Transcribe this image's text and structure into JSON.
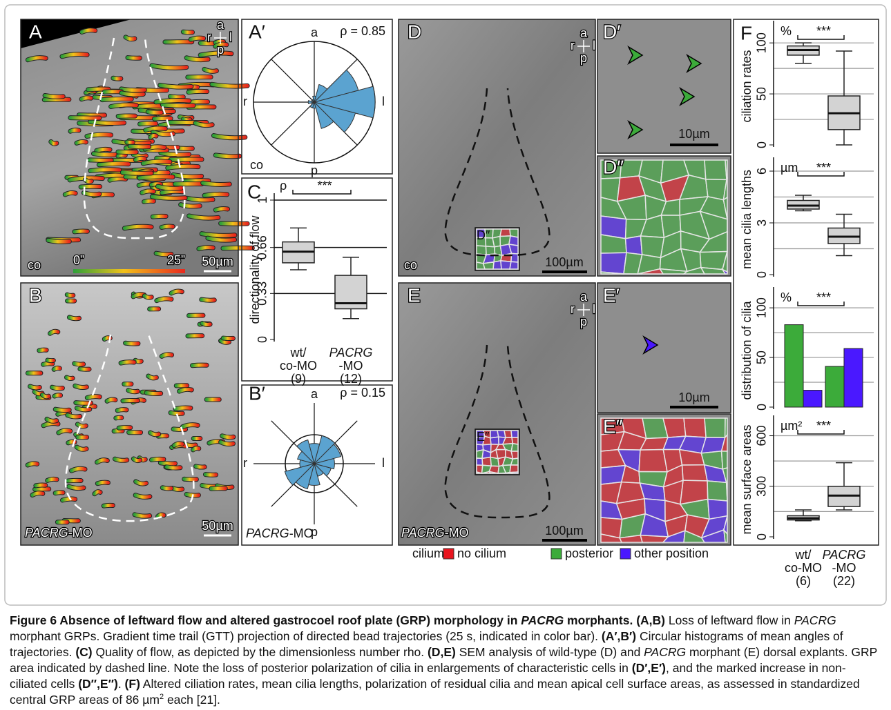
{
  "figure": {
    "panels": {
      "A": {
        "label": "A",
        "axes": {
          "a": "a",
          "r": "r",
          "l": "l",
          "p": "p"
        },
        "condition": "co",
        "colorbar": {
          "start": "0”",
          "end": "25”"
        },
        "scale_bar": "50µm"
      },
      "B": {
        "label": "B",
        "condition": {
          "gene": "PACRG",
          "suffix": "-MO"
        },
        "scale_bar": "50µm"
      },
      "D": {
        "label": "D",
        "axes": {
          "a": "a",
          "r": "r",
          "l": "l",
          "p": "p"
        },
        "condition": "co",
        "inset": "D″",
        "scale_bar": "100µm"
      },
      "D1": {
        "label": "D′",
        "scale_bar": "10µm"
      },
      "D2": {
        "label": "D″"
      },
      "E": {
        "label": "E",
        "axes": {
          "a": "a",
          "r": "r",
          "l": "l",
          "p": "p"
        },
        "condition": {
          "gene": "PACRG",
          "suffix": "-MO"
        },
        "inset": "E″",
        "scale_bar": "100µm"
      },
      "E1": {
        "label": "E′",
        "scale_bar": "10µm"
      },
      "E2": {
        "label": "E″"
      },
      "F": {
        "label": "F",
        "categories": [
          {
            "lines": [
              "wt/",
              "co-MO",
              "(6)"
            ],
            "italic_first": false
          },
          {
            "lines": [
              "PACRG",
              "-MO",
              "(22)"
            ],
            "italic_first": true
          }
        ]
      }
    },
    "legend": {
      "title": "cilium:",
      "items": [
        {
          "name": "no cilium",
          "color": "#e8141e"
        },
        {
          "name": "posterior",
          "color": "#3cab3a"
        },
        {
          "name": "other position",
          "color": "#4a18ff"
        }
      ]
    }
  },
  "chart_data": [
    {
      "type": "rose",
      "label": "A′",
      "annotation": "ρ = 0.85",
      "condition": "co",
      "directions": {
        "top": "a",
        "left": "r",
        "right": "l",
        "bottom": "p"
      },
      "x": [
        0,
        30,
        60,
        90,
        120,
        150,
        180,
        210,
        240,
        270,
        300,
        330
      ],
      "values": [
        1.0,
        0.75,
        0.3,
        0.1,
        0.05,
        0.05,
        0.1,
        0.05,
        0.1,
        0.1,
        0.45,
        0.7
      ],
      "rlim": [
        0,
        1
      ],
      "color": "#5ba3d0"
    },
    {
      "type": "box",
      "label": "C",
      "unit": "ρ",
      "ylabel": "directionality of flow",
      "categories": [
        {
          "lines": [
            "wt/",
            "co-MO",
            "(9)"
          ],
          "italic_first": false
        },
        {
          "lines": [
            "PACRG",
            "-MO",
            "(12)"
          ],
          "italic_first": true
        }
      ],
      "stats": [
        {
          "min": 0.5,
          "q1": 0.55,
          "median": 0.63,
          "q3": 0.7,
          "max": 0.8
        },
        {
          "min": 0.15,
          "q1": 0.22,
          "median": 0.26,
          "q3": 0.46,
          "max": 0.59
        }
      ],
      "color": "#d3d3d3",
      "ylim": [
        0,
        1
      ],
      "yticks": [
        0,
        0.33,
        0.66,
        1
      ],
      "gridlines": [
        0.33,
        0.66,
        1
      ],
      "significance": "***"
    },
    {
      "type": "rose",
      "label": "B′",
      "annotation": "ρ = 0.15",
      "condition": {
        "gene": "PACRG",
        "suffix": "-MO"
      },
      "directions": {
        "top": "a",
        "left": "r",
        "right": "l",
        "bottom": "p"
      },
      "x": [
        0,
        30,
        60,
        90,
        120,
        150,
        180,
        210,
        240,
        270,
        300,
        330
      ],
      "values": [
        0.7,
        0.95,
        1.0,
        0.7,
        0.85,
        0.6,
        0.5,
        1.05,
        0.9,
        0.75,
        0.45,
        0.6
      ],
      "rlim": [
        0,
        1
      ],
      "color": "#5ba3d0"
    },
    {
      "type": "box",
      "unit": "%",
      "ylabel": "ciliation rates",
      "stats": [
        {
          "min": 80,
          "q1": 88,
          "median": 93,
          "q3": 97,
          "max": 100
        },
        {
          "min": 0,
          "q1": 15,
          "median": 31,
          "q3": 48,
          "max": 92
        }
      ],
      "color": "#d3d3d3",
      "ylim": [
        0,
        115
      ],
      "yticks": [
        0,
        50,
        100
      ],
      "gridlines": [
        25,
        50,
        75,
        100
      ],
      "significance": "***"
    },
    {
      "type": "box",
      "unit": "µm",
      "ylabel": "mean cilia lengths",
      "stats": [
        {
          "min": 3.7,
          "q1": 3.8,
          "median": 4.0,
          "q3": 4.3,
          "max": 4.6
        },
        {
          "min": 1.1,
          "q1": 1.8,
          "median": 2.2,
          "q3": 2.7,
          "max": 3.5
        }
      ],
      "color": "#d3d3d3",
      "ylim": [
        0,
        6.4
      ],
      "yticks": [
        0,
        3,
        6
      ],
      "gridlines": [
        1.5,
        3,
        4.5,
        6
      ],
      "significance": "***"
    },
    {
      "type": "bar",
      "unit": "%",
      "ylabel": "distribution of cilia",
      "series": [
        {
          "color": "#3cab3a",
          "values": [
            83,
            41
          ]
        },
        {
          "color": "#4a18ff",
          "values": [
            17,
            59
          ]
        }
      ],
      "ylim": [
        0,
        114
      ],
      "yticks": [
        0,
        50,
        100
      ],
      "gridlines": [
        25,
        50,
        75,
        100
      ],
      "significance": "***"
    },
    {
      "type": "box",
      "unit": "µm²",
      "ylabel": "mean surface areas",
      "stats": [
        {
          "min": 95,
          "q1": 100,
          "median": 110,
          "q3": 125,
          "max": 160
        },
        {
          "min": 160,
          "q1": 180,
          "median": 245,
          "q3": 300,
          "max": 440
        }
      ],
      "color": "#d3d3d3",
      "ylim": [
        0,
        680
      ],
      "yticks": [
        0,
        300,
        600
      ],
      "gridlines": [
        150,
        300,
        450,
        600
      ],
      "significance": "***"
    }
  ],
  "caption": [
    {
      "text": "Figure 6 Absence of leftward flow and altered gastrocoel roof plate (GRP) morphology in ",
      "bold": true
    },
    {
      "text": "PACRG",
      "bold": true,
      "italic": true
    },
    {
      "text": " morphants.",
      "bold": true
    },
    {
      "text": " "
    },
    {
      "text": "(A,B)",
      "bold": true
    },
    {
      "text": " Loss of leftward flow in "
    },
    {
      "text": "PACRG",
      "italic": true
    },
    {
      "text": " morphant GRPs. Gradient time trail (GTT) projection of directed bead trajectories (25 s, indicated in color bar). "
    },
    {
      "text": "(A′,B′)",
      "bold": true
    },
    {
      "text": " Circular histograms of mean angles of trajectories. "
    },
    {
      "text": "(C)",
      "bold": true
    },
    {
      "text": " Quality of flow, as depicted by the dimensionless number rho. "
    },
    {
      "text": "(D,E)",
      "bold": true
    },
    {
      "text": " SEM analysis of wild-type (D) and "
    },
    {
      "text": "PACRG",
      "italic": true
    },
    {
      "text": " morphant (E) dorsal explants. GRP area indicated by dashed line. Note the loss of posterior polarization of cilia in enlargements of characteristic cells in "
    },
    {
      "text": "(D′,E′)",
      "bold": true
    },
    {
      "text": ", and the marked increase in non-ciliated cells "
    },
    {
      "text": "(D″,E″)",
      "bold": true
    },
    {
      "text": ". "
    },
    {
      "text": "(F)",
      "bold": true
    },
    {
      "text": " Altered ciliation rates, mean cilia lengths, polarization of residual cilia and mean apical cell surface areas, as assessed in standardized central GRP areas of 86 µm"
    },
    {
      "text": "2",
      "sup": true
    },
    {
      "text": " each [21]."
    }
  ]
}
